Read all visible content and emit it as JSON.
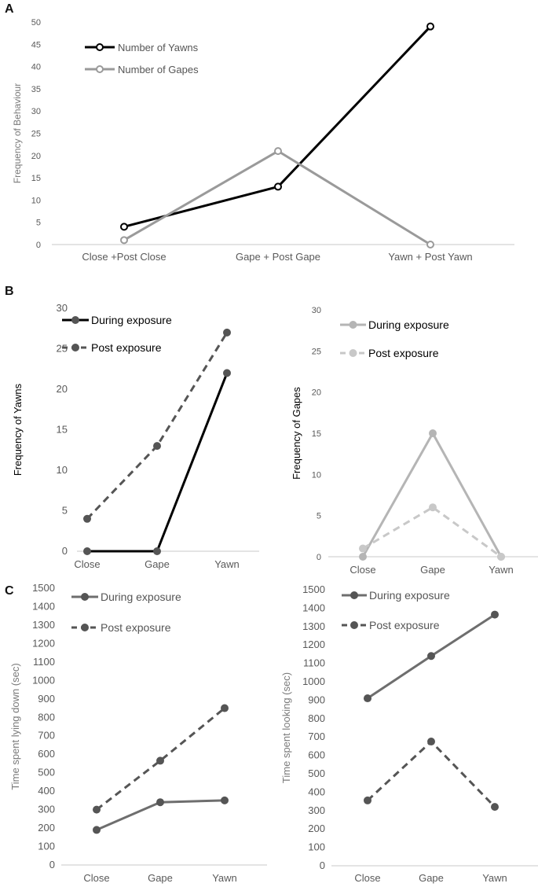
{
  "chart_data": [
    {
      "panel": "A",
      "type": "line",
      "title": "",
      "xlabel": "",
      "ylabel": "Frequency of Behaviour",
      "categories": [
        "Close +Post Close",
        "Gape + Post Gape",
        "Yawn + Post Yawn"
      ],
      "ylim": [
        0,
        50
      ],
      "yticks": [
        0,
        5,
        10,
        15,
        20,
        25,
        30,
        35,
        40,
        45,
        50
      ],
      "grid": false,
      "legend_position": "top-left",
      "series": [
        {
          "name": "Number of Yawns",
          "values": [
            4,
            13,
            49
          ],
          "color": "#000000",
          "dash": "solid"
        },
        {
          "name": "Number of Gapes",
          "values": [
            1,
            21,
            0
          ],
          "color": "#9a9a9a",
          "dash": "solid"
        }
      ]
    },
    {
      "panel": "B",
      "type": "line",
      "title": "",
      "xlabel": "",
      "ylabel": "Frequency of Yawns",
      "categories": [
        "Close",
        "Gape",
        "Yawn"
      ],
      "ylim": [
        0,
        30
      ],
      "yticks": [
        0,
        5,
        10,
        15,
        20,
        25,
        30
      ],
      "grid": false,
      "legend_position": "top-left",
      "series": [
        {
          "name": "During exposure",
          "values": [
            0,
            0,
            22
          ],
          "color": "#000000",
          "marker_color": "#555555",
          "dash": "solid"
        },
        {
          "name": "Post exposure",
          "values": [
            4,
            13,
            27
          ],
          "color": "#555555",
          "marker_color": "#555555",
          "dash": "dashed"
        }
      ]
    },
    {
      "panel": "",
      "type": "line",
      "title": "",
      "xlabel": "",
      "ylabel": "Frequency of Gapes",
      "categories": [
        "Close",
        "Gape",
        "Yawn"
      ],
      "ylim": [
        0,
        30
      ],
      "yticks": [
        0,
        5,
        10,
        15,
        20,
        25,
        30
      ],
      "grid": false,
      "legend_position": "top-left",
      "series": [
        {
          "name": "During exposure",
          "values": [
            0,
            15,
            0
          ],
          "color": "#b5b5b5",
          "marker_color": "#b5b5b5",
          "dash": "solid"
        },
        {
          "name": "Post exposure",
          "values": [
            1,
            6,
            0
          ],
          "color": "#c8c8c8",
          "marker_color": "#c8c8c8",
          "dash": "dashed"
        }
      ]
    },
    {
      "panel": "C",
      "type": "line",
      "title": "",
      "xlabel": "",
      "ylabel": "Time spent lying down (sec)",
      "categories": [
        "Close",
        "Gape",
        "Yawn"
      ],
      "ylim": [
        0,
        1500
      ],
      "yticks": [
        0,
        100,
        200,
        300,
        400,
        500,
        600,
        700,
        800,
        900,
        1000,
        1100,
        1200,
        1300,
        1400,
        1500
      ],
      "grid": false,
      "legend_position": "top-left",
      "series": [
        {
          "name": "During exposure",
          "values": [
            190,
            340,
            350
          ],
          "color": "#6e6e6e",
          "marker_color": "#555555",
          "dash": "solid"
        },
        {
          "name": "Post exposure",
          "values": [
            300,
            565,
            850
          ],
          "color": "#555555",
          "marker_color": "#555555",
          "dash": "dashed"
        }
      ]
    },
    {
      "panel": "",
      "type": "line",
      "title": "",
      "xlabel": "",
      "ylabel": "Time spent looking (sec)",
      "categories": [
        "Close",
        "Gape",
        "Yawn"
      ],
      "ylim": [
        0,
        1500
      ],
      "yticks": [
        0,
        100,
        200,
        300,
        400,
        500,
        600,
        700,
        800,
        900,
        1000,
        1100,
        1200,
        1300,
        1400,
        1500
      ],
      "grid": false,
      "legend_position": "top-left",
      "series": [
        {
          "name": "During exposure",
          "values": [
            910,
            1140,
            1365
          ],
          "color": "#6e6e6e",
          "marker_color": "#555555",
          "dash": "solid"
        },
        {
          "name": "Post exposure",
          "values": [
            355,
            675,
            320
          ],
          "color": "#555555",
          "marker_color": "#555555",
          "dash": "dashed"
        }
      ]
    }
  ]
}
